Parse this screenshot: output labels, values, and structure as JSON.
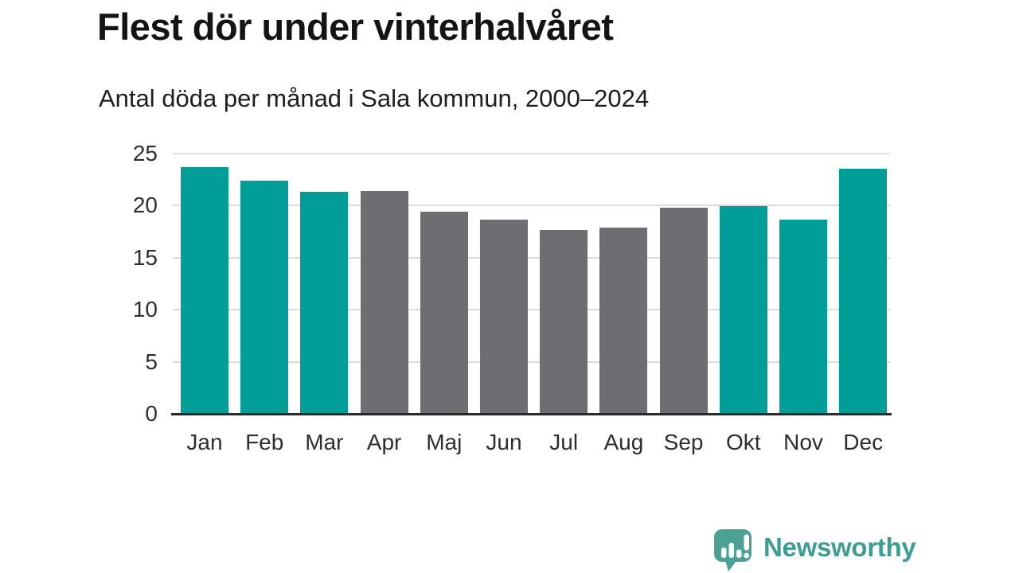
{
  "header": {
    "title": "Flest dör under vinterhalvåret",
    "subtitle": "Antal döda per månad i Sala kommun, 2000–2024"
  },
  "colors": {
    "winter_bar": "#009e96",
    "summer_bar": "#6e6d71",
    "gridline": "#dcdcdc",
    "axis_line": "#2a2a2a",
    "tick_text": "#2e2e2e",
    "logo_teal": "#3d9c94",
    "logo_bubble": "#4aa294"
  },
  "chart_data": {
    "type": "bar",
    "title": "Flest dör under vinterhalvåret",
    "subtitle": "Antal döda per månad i Sala kommun, 2000–2024",
    "categories": [
      "Jan",
      "Feb",
      "Mar",
      "Apr",
      "Maj",
      "Jun",
      "Jul",
      "Aug",
      "Sep",
      "Okt",
      "Nov",
      "Dec"
    ],
    "values": [
      23.7,
      22.4,
      21.3,
      21.4,
      19.4,
      18.6,
      17.6,
      17.9,
      19.8,
      19.9,
      18.6,
      23.5
    ],
    "highlighted": [
      true,
      true,
      true,
      false,
      false,
      false,
      false,
      false,
      false,
      true,
      true,
      true
    ],
    "highlight_meaning": "winter half-year months (teal)",
    "xlabel": "",
    "ylabel": "",
    "ylim": [
      0,
      25
    ],
    "yticks": [
      0,
      5,
      10,
      15,
      20,
      25
    ],
    "grid": true,
    "legend": false
  },
  "footer": {
    "brand": "Newsworthy",
    "logo_icon": "newsworthy-chart-bubble-icon"
  }
}
